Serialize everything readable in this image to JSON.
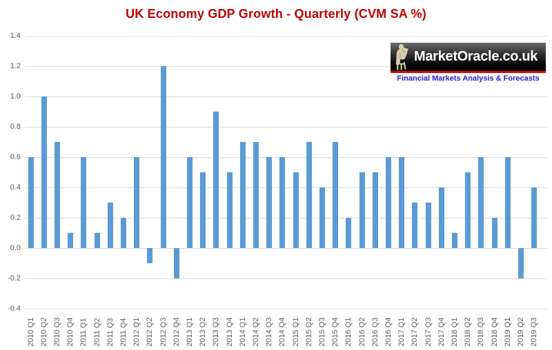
{
  "title": "UK Economy GDP Growth - Quarterly (CVM SA %)",
  "logo": {
    "brand": "MarketOracle.co.uk",
    "tagline": "Financial Markets Analysis & Forecasts",
    "icon": "oracle-statue-icon",
    "bar_bg": "#1a1a1a",
    "stripe_color": "#E60000",
    "brand_color": "#FFFFFF",
    "tagline_color": "#2222CC"
  },
  "chart_data": {
    "type": "bar",
    "title": "UK Economy GDP Growth - Quarterly (CVM SA %)",
    "categories": [
      "2010 Q1",
      "2010 Q2",
      "2010 Q3",
      "2010 Q4",
      "2011 Q1",
      "2011 Q2",
      "2011 Q3",
      "2011 Q4",
      "2012 Q1",
      "2012 Q2",
      "2012 Q3",
      "2012 Q4",
      "2013 Q1",
      "2013 Q2",
      "2013 Q3",
      "2013 Q4",
      "2014 Q1",
      "2014 Q2",
      "2014 Q3",
      "2014 Q4",
      "2015 Q1",
      "2015 Q2",
      "2015 Q3",
      "2015 Q4",
      "2016 Q1",
      "2016 Q2",
      "2016 Q3",
      "2016 Q4",
      "2017 Q1",
      "2017 Q2",
      "2017 Q3",
      "2017 Q4",
      "2018 Q1",
      "2018 Q2",
      "2018 Q3",
      "2018 Q4",
      "2019 Q1",
      "2019 Q2",
      "2019 Q3"
    ],
    "values": [
      0.6,
      1.0,
      0.7,
      0.1,
      0.6,
      0.1,
      0.3,
      0.2,
      0.6,
      -0.1,
      1.2,
      -0.2,
      0.6,
      0.5,
      0.9,
      0.5,
      0.7,
      0.7,
      0.6,
      0.6,
      0.5,
      0.7,
      0.4,
      0.7,
      0.2,
      0.5,
      0.5,
      0.6,
      0.6,
      0.3,
      0.3,
      0.4,
      0.1,
      0.5,
      0.6,
      0.2,
      0.6,
      -0.2,
      0.4
    ],
    "y_ticks": [
      "1.4",
      "1.2",
      "1.0",
      "0.8",
      "0.6",
      "0.4",
      "0.2",
      "0.0",
      "-0.2",
      "-0.4"
    ],
    "ylim": [
      -0.4,
      1.4
    ],
    "xlabel": "",
    "ylabel": "",
    "grid": true,
    "legend": false,
    "bar_color": "#5B9BD5",
    "gridline_color": "#D9D9D9",
    "tick_label_color": "#595959",
    "title_color": "#C00000"
  }
}
